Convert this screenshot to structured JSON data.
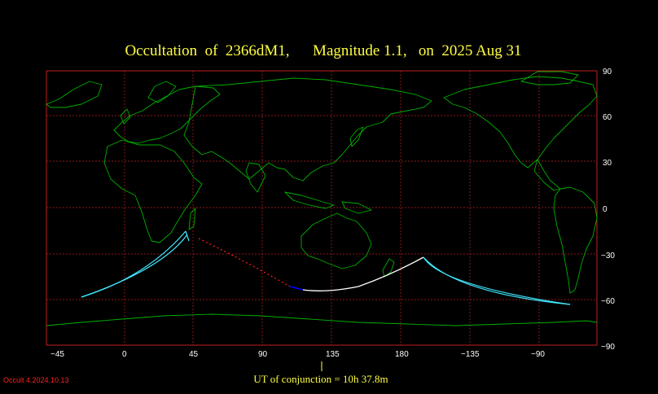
{
  "title": "Occultation  of  2366dM1,      Magnitude 1.1,   on  2025 Aug 31",
  "x_axis_labels": [
    "−45",
    "0",
    "45",
    "90",
    "135",
    "180",
    "−135",
    "−90"
  ],
  "y_axis_labels": [
    "90",
    "60",
    "30",
    "0",
    "−30",
    "−60",
    "−90"
  ],
  "conjunction_text": "UT of conjunction = 10h 37.8m",
  "version_text": "Occult 4.2024.10.13",
  "colors": {
    "background": "#000000",
    "grid": "#c02020",
    "coastline": "#00b000",
    "path_day": "#ffffff",
    "path_night_edge": "#0000ff",
    "path_dotted": "#ff2020",
    "limits": "#40e8ff",
    "title": "#ffff40"
  }
}
